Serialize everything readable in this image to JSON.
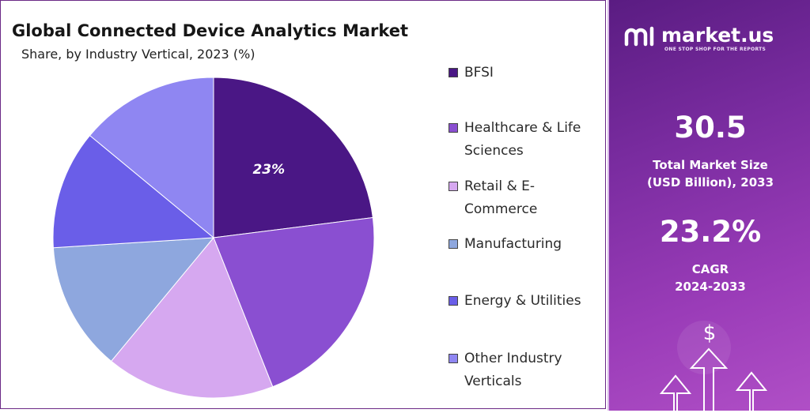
{
  "chart_data": {
    "type": "pie",
    "title": "Global Connected Device Analytics Market",
    "subtitle": "Share, by Industry Vertical, 2023 (%)",
    "categories": [
      "BFSI",
      "Healthcare & Life Sciences",
      "Retail & E-Commerce",
      "Manufacturing",
      "Energy & Utilities",
      "Other Industry Verticals"
    ],
    "values": [
      23,
      21,
      17,
      13,
      12,
      14
    ],
    "data_labels": [
      "23%",
      "",
      "",
      "",
      "",
      ""
    ],
    "legend_placement": "right",
    "legend_lines": [
      [
        "BFSI"
      ],
      [
        "Healthcare & Life",
        "Sciences"
      ],
      [
        "Retail & E-",
        "Commerce"
      ],
      [
        "Manufacturing"
      ],
      [
        "Energy & Utilities"
      ],
      [
        "Other Industry",
        "Verticals"
      ]
    ],
    "colors": [
      "#4a1785",
      "#8a4fd1",
      "#d6a8f0",
      "#8ea7de",
      "#6a5ee8",
      "#8f86f2"
    ]
  },
  "brand": {
    "name": "market.us",
    "tagline": "ONE STOP SHOP FOR THE REPORTS"
  },
  "stats": {
    "market_size_value": "30.5",
    "market_size_label_1": "Total Market Size",
    "market_size_label_2": "(USD Billion), 2033",
    "cagr_value": "23.2%",
    "cagr_label_1": "CAGR",
    "cagr_label_2": "2024-2033"
  },
  "decoration": {
    "currency_symbol": "$"
  }
}
